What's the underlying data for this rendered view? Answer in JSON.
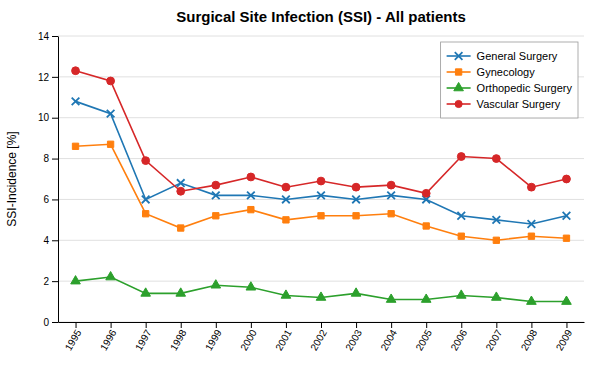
{
  "chart_data": {
    "type": "line",
    "title": "Surgical Site Infection (SSI) - All patients",
    "ylabel": "SSI-Incidence [%]",
    "x": [
      1995,
      1996,
      1997,
      1998,
      1999,
      2000,
      2001,
      2002,
      2003,
      2004,
      2005,
      2006,
      2007,
      2008,
      2009
    ],
    "xlim": [
      1994.5,
      2009.5
    ],
    "xticks": [
      1995,
      1996,
      1997,
      1998,
      1999,
      2000,
      2001,
      2002,
      2003,
      2004,
      2005,
      2006,
      2007,
      2008,
      2009
    ],
    "ylim": [
      0,
      14
    ],
    "yticks": [
      0,
      2,
      4,
      6,
      8,
      10,
      12,
      14
    ],
    "grid": "y",
    "legend": "upper right",
    "series": [
      {
        "name": "General Surgery",
        "marker": "x",
        "values": [
          10.8,
          10.2,
          6.0,
          6.8,
          6.2,
          6.2,
          6.0,
          6.2,
          6.0,
          6.2,
          6.0,
          5.2,
          5.0,
          4.8,
          5.2
        ]
      },
      {
        "name": "Gynecology",
        "marker": "square",
        "values": [
          8.6,
          8.7,
          5.3,
          4.6,
          5.2,
          5.5,
          5.0,
          5.2,
          5.2,
          5.3,
          4.7,
          4.2,
          4.0,
          4.2,
          4.1
        ]
      },
      {
        "name": "Orthopedic Surgery",
        "marker": "triangle",
        "values": [
          2.0,
          2.2,
          1.4,
          1.4,
          1.8,
          1.7,
          1.3,
          1.2,
          1.4,
          1.1,
          1.1,
          1.3,
          1.2,
          1.0,
          1.0
        ]
      },
      {
        "name": "Vascular Surgery",
        "marker": "circle",
        "values": [
          12.3,
          11.8,
          7.9,
          6.4,
          6.7,
          7.1,
          6.6,
          6.9,
          6.6,
          6.7,
          6.3,
          8.1,
          8.0,
          6.6,
          7.0
        ]
      }
    ]
  }
}
